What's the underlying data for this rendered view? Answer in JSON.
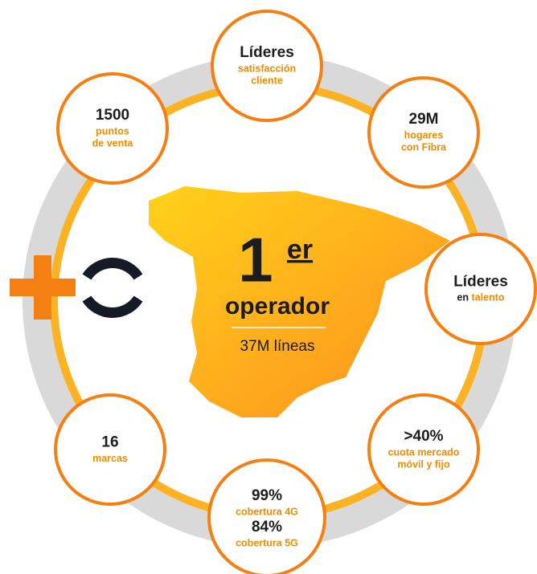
{
  "center": {
    "number": "1",
    "suffix": "er",
    "label": "operador",
    "sub": "37M líneas"
  },
  "nodes": [
    {
      "items": [
        {
          "title": "Líderes",
          "lines": [
            "satisfacción",
            "cliente"
          ]
        }
      ]
    },
    {
      "items": [
        {
          "title": "29M",
          "lines": [
            "hogares",
            "con Fibra"
          ]
        }
      ]
    },
    {
      "items": [
        {
          "title": "Líderes",
          "lead": "en",
          "lines": [
            "talento"
          ]
        }
      ]
    },
    {
      "items": [
        {
          "title": ">40%",
          "lines": [
            "cuota  mercado",
            "móvil y fijo"
          ]
        }
      ]
    },
    {
      "items": [
        {
          "title": "99%",
          "lines": [
            "cobertura 4G"
          ]
        },
        {
          "title": "84%",
          "lines": [
            "cobertura 5G"
          ]
        }
      ]
    },
    {
      "items": [
        {
          "title": "16",
          "lines": [
            "marcas"
          ]
        }
      ]
    },
    {
      "items": [
        {
          "title": "1500",
          "lines": [
            "puntos",
            "de venta"
          ]
        }
      ]
    }
  ]
}
